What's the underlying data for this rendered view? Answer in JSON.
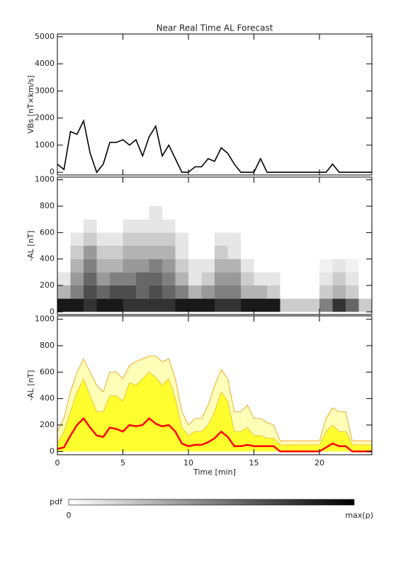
{
  "chart_data": [
    {
      "type": "line",
      "title": "Near Real Time AL Forecast",
      "y_label": "VBs [nT×km/s]",
      "color": "#000000",
      "x": [
        0,
        0.5,
        1,
        1.5,
        2,
        2.5,
        3,
        3.5,
        4,
        4.5,
        5,
        5.5,
        6,
        6.5,
        7,
        7.5,
        8,
        8.5,
        9,
        9.5,
        10,
        10.5,
        11,
        11.5,
        12,
        12.5,
        13,
        13.5,
        14,
        14.5,
        15,
        15.5,
        16,
        16.5,
        17,
        17.5,
        18,
        18.5,
        19,
        19.5,
        20,
        20.5,
        21,
        21.5,
        22,
        22.5,
        23,
        23.5,
        24
      ],
      "values": [
        300,
        100,
        1500,
        1400,
        1900,
        700,
        0,
        300,
        1100,
        1100,
        1200,
        1000,
        1200,
        600,
        1300,
        1700,
        600,
        1000,
        500,
        0,
        0,
        200,
        200,
        500,
        400,
        900,
        700,
        300,
        0,
        0,
        0,
        500,
        0,
        0,
        0,
        0,
        0,
        0,
        0,
        0,
        0,
        0,
        300,
        0,
        0,
        0,
        0,
        0,
        0
      ],
      "xlim": [
        0,
        24
      ],
      "ylim": [
        -100,
        5100
      ],
      "yticks": [
        0,
        1000,
        2000,
        3000,
        4000,
        5000
      ]
    },
    {
      "type": "heatmap",
      "y_label": "-AL [nT]",
      "x_bins": [
        0,
        1,
        2,
        3,
        4,
        5,
        6,
        7,
        8,
        9,
        10,
        11,
        12,
        13,
        14,
        15,
        16,
        17,
        18,
        19,
        20,
        21,
        22,
        23,
        24
      ],
      "y_bins": [
        0,
        100,
        200,
        300,
        400,
        500,
        600,
        700,
        800
      ],
      "values": [
        [
          0.9,
          0.3,
          0.1,
          0,
          0,
          0,
          0,
          0
        ],
        [
          0.9,
          0.5,
          0.4,
          0.3,
          0.2,
          0.1,
          0,
          0
        ],
        [
          0.8,
          0.7,
          0.6,
          0.5,
          0.4,
          0.2,
          0.1,
          0
        ],
        [
          0.9,
          0.6,
          0.4,
          0.3,
          0.2,
          0.1,
          0,
          0
        ],
        [
          0.9,
          0.7,
          0.5,
          0.3,
          0.2,
          0.1,
          0,
          0
        ],
        [
          0.8,
          0.7,
          0.5,
          0.4,
          0.3,
          0.2,
          0.1,
          0
        ],
        [
          0.8,
          0.6,
          0.6,
          0.4,
          0.3,
          0.2,
          0.1,
          0
        ],
        [
          0.8,
          0.7,
          0.6,
          0.5,
          0.3,
          0.2,
          0.1,
          0.1
        ],
        [
          0.8,
          0.6,
          0.5,
          0.4,
          0.3,
          0.2,
          0.1,
          0
        ],
        [
          0.9,
          0.5,
          0.3,
          0.2,
          0.1,
          0.1,
          0,
          0
        ],
        [
          0.9,
          0.3,
          0.1,
          0.1,
          0,
          0,
          0,
          0
        ],
        [
          0.9,
          0.4,
          0.2,
          0.1,
          0,
          0,
          0,
          0
        ],
        [
          0.8,
          0.5,
          0.4,
          0.3,
          0.2,
          0.1,
          0,
          0
        ],
        [
          0.8,
          0.5,
          0.4,
          0.3,
          0.1,
          0.1,
          0,
          0
        ],
        [
          0.9,
          0.3,
          0.2,
          0.1,
          0,
          0,
          0,
          0
        ],
        [
          0.9,
          0.3,
          0.1,
          0,
          0,
          0,
          0,
          0
        ],
        [
          0.9,
          0.2,
          0.1,
          0,
          0,
          0,
          0,
          0
        ],
        [
          0.2,
          0,
          0,
          0,
          0,
          0,
          0,
          0
        ],
        [
          0.2,
          0,
          0,
          0,
          0,
          0,
          0,
          0
        ],
        [
          0.2,
          0,
          0,
          0,
          0,
          0,
          0,
          0
        ],
        [
          0.5,
          0.2,
          0.1,
          0.05,
          0,
          0,
          0,
          0
        ],
        [
          0.8,
          0.3,
          0.2,
          0.1,
          0,
          0,
          0,
          0
        ],
        [
          0.6,
          0.2,
          0.1,
          0.05,
          0,
          0,
          0,
          0
        ],
        [
          0.2,
          0,
          0,
          0,
          0,
          0,
          0,
          0
        ]
      ],
      "xlim": [
        0,
        24
      ],
      "ylim": [
        -20,
        1020
      ],
      "yticks": [
        0,
        200,
        400,
        600,
        800,
        1000
      ]
    },
    {
      "type": "area",
      "y_label": "-AL [nT]",
      "x_label": "Time [min]",
      "x": [
        0,
        0.5,
        1,
        1.5,
        2,
        2.5,
        3,
        3.5,
        4,
        4.5,
        5,
        5.5,
        6,
        6.5,
        7,
        7.5,
        8,
        8.5,
        9,
        9.5,
        10,
        10.5,
        11,
        11.5,
        12,
        12.5,
        13,
        13.5,
        14,
        14.5,
        15,
        15.5,
        16,
        16.5,
        17,
        17.5,
        18,
        18.5,
        19,
        19.5,
        20,
        20.5,
        21,
        21.5,
        22,
        22.5,
        23,
        23.5,
        24
      ],
      "series": [
        {
          "color": "#f0a830",
          "fill": "#ffffb8",
          "values": [
            150,
            250,
            450,
            600,
            700,
            600,
            500,
            450,
            600,
            600,
            550,
            650,
            680,
            700,
            720,
            720,
            680,
            700,
            550,
            300,
            200,
            250,
            250,
            350,
            500,
            620,
            550,
            300,
            300,
            350,
            250,
            250,
            220,
            200,
            80,
            80,
            80,
            80,
            80,
            80,
            80,
            250,
            330,
            300,
            300,
            80,
            80,
            80,
            80
          ]
        },
        {
          "color": "#f0c040",
          "fill": "#ffff30",
          "values": [
            60,
            150,
            300,
            450,
            550,
            420,
            300,
            300,
            420,
            420,
            380,
            520,
            500,
            550,
            600,
            560,
            500,
            550,
            400,
            180,
            120,
            150,
            150,
            200,
            300,
            450,
            380,
            150,
            150,
            180,
            120,
            120,
            100,
            100,
            50,
            50,
            50,
            50,
            50,
            50,
            50,
            150,
            200,
            150,
            150,
            50,
            50,
            50,
            50
          ]
        },
        {
          "color": "#ff0000",
          "values": [
            20,
            30,
            120,
            200,
            250,
            180,
            120,
            110,
            180,
            170,
            150,
            200,
            190,
            200,
            250,
            210,
            190,
            200,
            150,
            60,
            40,
            50,
            50,
            70,
            100,
            150,
            110,
            40,
            40,
            50,
            40,
            40,
            40,
            40,
            0,
            0,
            0,
            0,
            0,
            0,
            0,
            30,
            60,
            40,
            40,
            0,
            0,
            0,
            0
          ]
        }
      ],
      "xlim": [
        0,
        24
      ],
      "ylim": [
        -25,
        1025
      ],
      "yticks": [
        0,
        200,
        400,
        600,
        800,
        1000
      ],
      "xticks": [
        0,
        5,
        10,
        15,
        20
      ]
    }
  ],
  "colorbar": {
    "label": "pdf",
    "min_label": "0",
    "max_label": "max(p)"
  }
}
